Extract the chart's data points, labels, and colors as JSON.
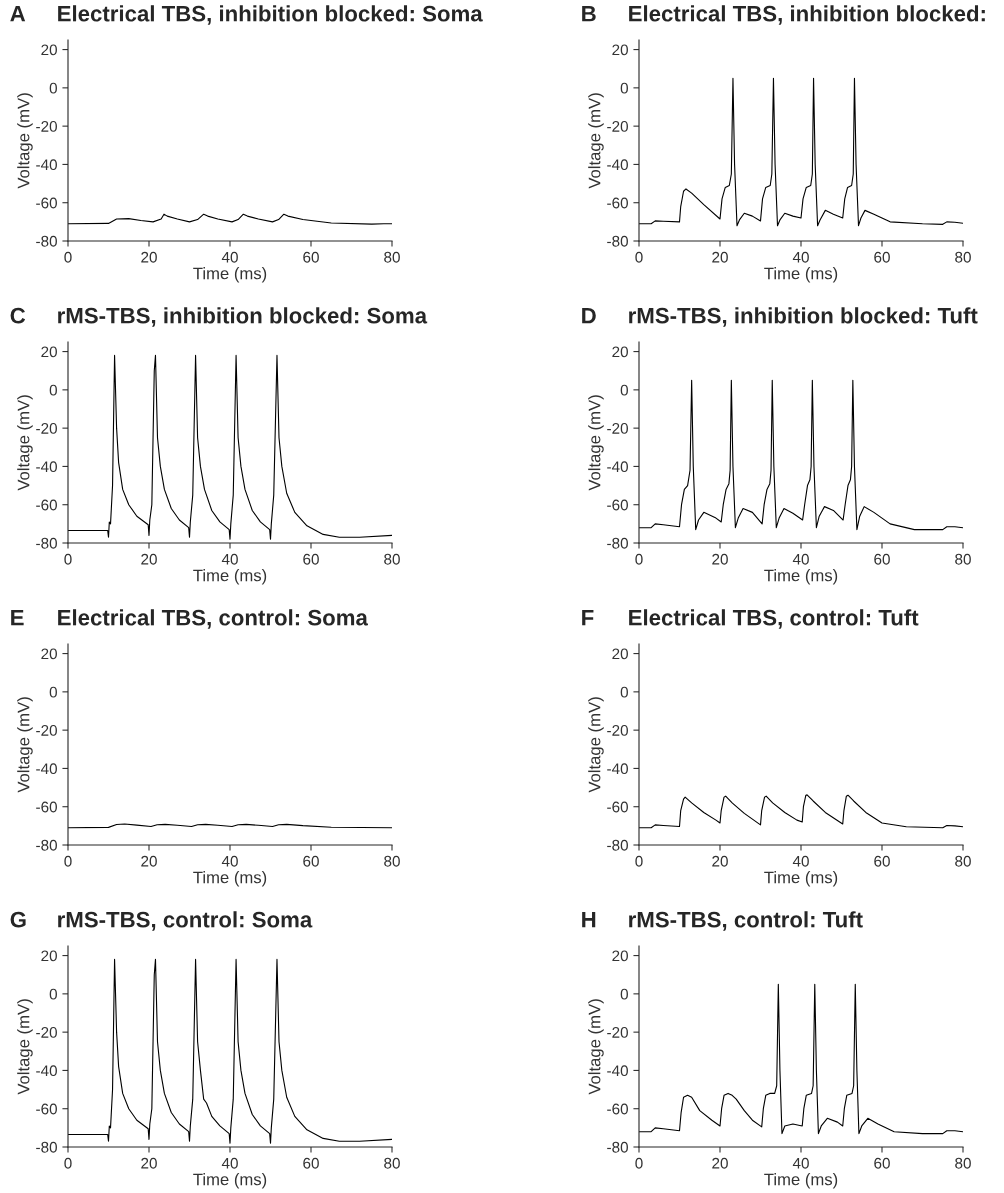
{
  "chart_data": [
    {
      "type": "line",
      "title": "Electrical TBS, inhibition blocked: Soma",
      "annotations": [
        "A"
      ],
      "xlabel": "Time (ms)",
      "ylabel": "Voltage (mV)",
      "xlim": [
        0,
        80
      ],
      "ylim": [
        -80,
        25
      ],
      "xticks": [
        0,
        20,
        40,
        60,
        80
      ],
      "yticks": [
        -80,
        -60,
        -40,
        -20,
        0,
        20
      ],
      "series": [
        {
          "color": "#000000",
          "x": [
            0,
            10,
            12,
            15,
            18,
            21,
            23,
            23.7,
            24.5,
            27,
            30,
            32,
            33.5,
            34.5,
            37,
            40.5,
            42,
            43.3,
            44.3,
            47,
            50.5,
            52,
            53.3,
            54.3,
            58,
            65,
            75,
            78,
            80
          ],
          "values": [
            -71,
            -70.8,
            -68.5,
            -68.3,
            -69.3,
            -70,
            -68.5,
            -66,
            -67,
            -68.5,
            -70,
            -68.8,
            -66,
            -67,
            -68.5,
            -70,
            -68.8,
            -66,
            -67,
            -68.5,
            -70,
            -68.8,
            -66,
            -67,
            -68.8,
            -70.6,
            -71.2,
            -71,
            -71
          ]
        }
      ]
    },
    {
      "type": "line",
      "title": "Electrical TBS, inhibition blocked:",
      "annotations": [
        "B"
      ],
      "xlabel": "Time (ms)",
      "ylabel": "Voltage (mV)",
      "xlim": [
        0,
        80
      ],
      "ylim": [
        -80,
        25
      ],
      "xticks": [
        0,
        20,
        40,
        60,
        80
      ],
      "yticks": [
        -80,
        -60,
        -40,
        -20,
        0,
        20
      ],
      "series": [
        {
          "color": "#000000",
          "x": [
            0,
            3,
            4,
            6,
            10,
            10.3,
            11,
            11.6,
            13,
            16,
            20,
            20.5,
            21.3,
            22.3,
            22.8,
            23.2,
            23.6,
            24.2,
            24.8,
            26,
            28,
            30,
            30.5,
            31.3,
            32.4,
            32.8,
            33.2,
            33.6,
            34.2,
            34.8,
            36,
            38,
            40,
            40.5,
            41.3,
            42.4,
            42.8,
            43.1,
            43.5,
            44.1,
            44.7,
            46,
            48,
            50.3,
            50.8,
            51.5,
            52.5,
            52.9,
            53.2,
            53.6,
            54.2,
            54.8,
            55.8,
            58,
            62,
            70,
            75,
            76,
            78,
            80
          ],
          "values": [
            -71,
            -71,
            -69.5,
            -69.7,
            -70,
            -62,
            -54,
            -52.8,
            -55,
            -61,
            -68.5,
            -58,
            -52,
            -51,
            -45,
            5,
            -40,
            -72,
            -69,
            -65.5,
            -67,
            -69.5,
            -58,
            -52,
            -51,
            -45,
            5,
            -40,
            -72,
            -69,
            -65.5,
            -67,
            -68,
            -58,
            -52,
            -51,
            -45,
            5,
            -40,
            -72,
            -69,
            -64,
            -66,
            -68,
            -58,
            -52,
            -51,
            -45,
            5,
            -40,
            -72,
            -68,
            -64,
            -66,
            -70,
            -71,
            -71.3,
            -70,
            -70.2,
            -70.7
          ]
        }
      ]
    },
    {
      "type": "line",
      "title": "rMS-TBS, inhibition blocked: Soma",
      "annotations": [
        "C"
      ],
      "xlabel": "Time (ms)",
      "ylabel": "Voltage (mV)",
      "xlim": [
        0,
        80
      ],
      "ylim": [
        -80,
        25
      ],
      "xticks": [
        0,
        20,
        40,
        60,
        80
      ],
      "yticks": [
        -80,
        -60,
        -40,
        -20,
        0,
        20
      ],
      "series": [
        {
          "color": "#000000",
          "x": [
            0,
            9.8,
            10,
            10.2,
            10.5,
            11,
            11.5,
            12,
            12.5,
            13.5,
            15,
            17,
            19.8,
            20,
            20.2,
            20.7,
            21.3,
            21.6,
            22.1,
            22.8,
            23.8,
            25.5,
            27.5,
            29.8,
            30,
            30.2,
            30.8,
            31.5,
            32,
            32.7,
            33.7,
            35.5,
            37.5,
            39.8,
            40,
            40.2,
            40.8,
            41.5,
            42,
            42.7,
            43.7,
            45.5,
            47.5,
            49.8,
            50,
            50.2,
            50.8,
            51.6,
            52.1,
            52.8,
            54,
            56,
            59,
            63,
            67,
            72,
            80
          ],
          "values": [
            -73.5,
            -73.5,
            -77,
            -69,
            -70,
            -50,
            18,
            -20,
            -38,
            -52,
            -60,
            -66,
            -70.5,
            -76,
            -68,
            -60,
            10,
            18,
            -25,
            -40,
            -52,
            -62,
            -68,
            -72,
            -77,
            -69,
            -55,
            18,
            -25,
            -40,
            -52,
            -63,
            -69,
            -73,
            -78,
            -70,
            -55,
            18,
            -25,
            -40,
            -52,
            -63,
            -69,
            -73,
            -78,
            -70,
            -55,
            18,
            -25,
            -40,
            -54,
            -64,
            -71,
            -75.5,
            -77,
            -77,
            -76
          ]
        }
      ]
    },
    {
      "type": "line",
      "title": "rMS-TBS, inhibition blocked: Tuft",
      "annotations": [
        "D"
      ],
      "xlabel": "Time (ms)",
      "ylabel": "Voltage (mV)",
      "xlim": [
        0,
        80
      ],
      "ylim": [
        -80,
        25
      ],
      "xticks": [
        0,
        20,
        40,
        60,
        80
      ],
      "yticks": [
        -80,
        -60,
        -40,
        -20,
        0,
        20
      ],
      "series": [
        {
          "color": "#000000",
          "x": [
            0,
            3,
            4,
            6,
            10,
            10.5,
            11.2,
            12,
            12.6,
            13,
            13.4,
            14,
            14.7,
            16,
            19,
            20.3,
            20.8,
            21.5,
            22.2,
            22.5,
            22.8,
            23.2,
            23.8,
            24.5,
            25.7,
            28,
            30.4,
            30.9,
            31.6,
            32.3,
            32.6,
            32.9,
            33.3,
            33.9,
            34.6,
            35.8,
            38,
            40.4,
            40.9,
            41.6,
            42.2,
            42.5,
            42.8,
            43.2,
            43.8,
            44.5,
            45.8,
            48,
            50.4,
            50.9,
            51.6,
            52.2,
            52.5,
            52.8,
            53.2,
            53.8,
            54.5,
            55.6,
            58,
            62,
            68,
            75,
            76,
            78,
            80
          ],
          "values": [
            -72,
            -72,
            -70,
            -70.5,
            -71.5,
            -60,
            -52,
            -50,
            -42,
            5,
            -40,
            -73,
            -68,
            -64,
            -67,
            -69,
            -60,
            -52,
            -49,
            -42,
            5,
            -40,
            -72,
            -67,
            -62,
            -64,
            -70,
            -60,
            -52,
            -49,
            -42,
            5,
            -40,
            -72,
            -67,
            -62,
            -64.5,
            -68,
            -60,
            -50,
            -47,
            -40,
            5,
            -40,
            -72,
            -66,
            -61,
            -63,
            -68,
            -60,
            -50,
            -47,
            -40,
            5,
            -40,
            -73,
            -66,
            -61,
            -64,
            -70,
            -73,
            -73,
            -71.5,
            -71.5,
            -72
          ]
        }
      ]
    },
    {
      "type": "line",
      "title": "Electrical TBS, control: Soma",
      "annotations": [
        "E"
      ],
      "xlabel": "Time (ms)",
      "ylabel": "Voltage (mV)",
      "xlim": [
        0,
        80
      ],
      "ylim": [
        -80,
        25
      ],
      "xticks": [
        0,
        20,
        40,
        60,
        80
      ],
      "yticks": [
        -80,
        -60,
        -40,
        -20,
        0,
        20
      ],
      "series": [
        {
          "color": "#000000",
          "x": [
            0,
            10,
            12,
            14,
            17,
            20.5,
            22,
            24,
            27,
            30.5,
            32,
            34,
            37,
            40.5,
            42,
            44,
            47,
            50.5,
            52,
            54,
            58,
            65,
            80
          ],
          "values": [
            -71,
            -70.8,
            -69.3,
            -69,
            -69.6,
            -70.3,
            -69.4,
            -69.2,
            -69.7,
            -70.3,
            -69.4,
            -69.2,
            -69.7,
            -70.3,
            -69.4,
            -69.2,
            -69.7,
            -70.3,
            -69.4,
            -69.2,
            -69.9,
            -70.7,
            -71
          ]
        }
      ]
    },
    {
      "type": "line",
      "title": "Electrical TBS, control: Tuft",
      "annotations": [
        "F"
      ],
      "xlabel": "Time (ms)",
      "ylabel": "Voltage (mV)",
      "xlim": [
        0,
        80
      ],
      "ylim": [
        -80,
        25
      ],
      "xticks": [
        0,
        20,
        40,
        60,
        80
      ],
      "yticks": [
        -80,
        -60,
        -40,
        -20,
        0,
        20
      ],
      "series": [
        {
          "color": "#000000",
          "x": [
            0,
            3,
            4,
            6,
            10,
            10.3,
            11,
            11.4,
            13,
            16,
            19,
            20,
            20.3,
            21,
            21.4,
            23,
            26,
            30,
            30.3,
            31,
            31.4,
            33,
            36,
            39,
            40.3,
            40.6,
            41.2,
            41.5,
            43,
            46,
            50.3,
            50.6,
            51.2,
            51.6,
            53,
            56,
            60,
            66,
            75,
            76,
            78,
            80
          ],
          "values": [
            -71,
            -71,
            -69.5,
            -69.8,
            -70.3,
            -62,
            -56,
            -55,
            -58,
            -63,
            -67,
            -68.5,
            -62,
            -55,
            -54.5,
            -58,
            -63.5,
            -69.5,
            -62,
            -55,
            -54.5,
            -58,
            -63,
            -67,
            -68,
            -60,
            -54,
            -53.8,
            -57,
            -63,
            -69,
            -62,
            -54.5,
            -54,
            -57,
            -63,
            -68.5,
            -70.5,
            -71,
            -69.8,
            -70,
            -70.5
          ]
        }
      ]
    },
    {
      "type": "line",
      "title": "rMS-TBS, control: Soma",
      "annotations": [
        "G"
      ],
      "xlabel": "Time (ms)",
      "ylabel": "Voltage (mV)",
      "xlim": [
        0,
        80
      ],
      "ylim": [
        -80,
        25
      ],
      "xticks": [
        0,
        20,
        40,
        60,
        80
      ],
      "yticks": [
        -80,
        -60,
        -40,
        -20,
        0,
        20
      ],
      "series": [
        {
          "color": "#000000",
          "x": [
            0,
            9.8,
            10,
            10.2,
            10.5,
            11,
            11.5,
            12,
            12.5,
            13.5,
            15,
            17,
            19.8,
            20,
            20.2,
            20.7,
            21.3,
            21.6,
            22.1,
            22.8,
            23.8,
            25.5,
            27.5,
            29.8,
            30,
            30.2,
            30.8,
            31.5,
            32,
            32.7,
            33.5,
            34.2,
            35.5,
            37.5,
            39.8,
            40,
            40.2,
            40.8,
            41.5,
            42,
            42.7,
            43.7,
            45.5,
            47.5,
            49.8,
            50,
            50.2,
            50.8,
            51.6,
            52.1,
            52.8,
            54,
            56,
            59,
            63,
            67,
            72,
            80
          ],
          "values": [
            -73.5,
            -73.5,
            -77,
            -69,
            -70,
            -50,
            18,
            -20,
            -38,
            -52,
            -60,
            -66,
            -70.5,
            -76,
            -68,
            -60,
            10,
            18,
            -25,
            -40,
            -52,
            -62,
            -68,
            -72,
            -77,
            -69,
            -55,
            18,
            -25,
            -40,
            -55,
            -57,
            -64,
            -69,
            -73,
            -78,
            -70,
            -55,
            18,
            -25,
            -40,
            -52,
            -63,
            -69,
            -73,
            -78,
            -70,
            -55,
            18,
            -25,
            -40,
            -54,
            -64,
            -71,
            -75.5,
            -77,
            -77,
            -76
          ]
        }
      ]
    },
    {
      "type": "line",
      "title": "rMS-TBS, control: Tuft",
      "annotations": [
        "H"
      ],
      "xlabel": "Time (ms)",
      "ylabel": "Voltage (mV)",
      "xlim": [
        0,
        80
      ],
      "ylim": [
        -80,
        25
      ],
      "xticks": [
        0,
        20,
        40,
        60,
        80
      ],
      "yticks": [
        -80,
        -60,
        -40,
        -20,
        0,
        20
      ],
      "series": [
        {
          "color": "#000000",
          "x": [
            0,
            3,
            4,
            6,
            10,
            10.4,
            11,
            12,
            13,
            15,
            18,
            20,
            20.4,
            21,
            22,
            23,
            24,
            26,
            28,
            30.3,
            30.7,
            31.3,
            32.3,
            33.5,
            34,
            34.4,
            34.8,
            35.3,
            36,
            38,
            40.3,
            40.7,
            41.3,
            42.6,
            43,
            43.4,
            43.8,
            44.3,
            45,
            46.5,
            49,
            50.3,
            50.7,
            51.3,
            52.6,
            53,
            53.4,
            53.8,
            54.3,
            55,
            56.5,
            59,
            63,
            70,
            75,
            76,
            78,
            80
          ],
          "values": [
            -72,
            -72,
            -70,
            -70.5,
            -71.5,
            -62,
            -54,
            -53,
            -54,
            -61,
            -66,
            -69,
            -60,
            -53,
            -52,
            -53,
            -55,
            -61,
            -66,
            -69.5,
            -60,
            -53,
            -52,
            -52,
            -48,
            5,
            -40,
            -73,
            -69,
            -68,
            -69,
            -60,
            -53,
            -52,
            -48,
            5,
            -40,
            -73,
            -69,
            -65,
            -67,
            -69,
            -60,
            -53,
            -52,
            -48,
            5,
            -40,
            -73,
            -69,
            -65,
            -68,
            -72,
            -73,
            -73,
            -71.5,
            -71.5,
            -72
          ]
        }
      ]
    }
  ]
}
